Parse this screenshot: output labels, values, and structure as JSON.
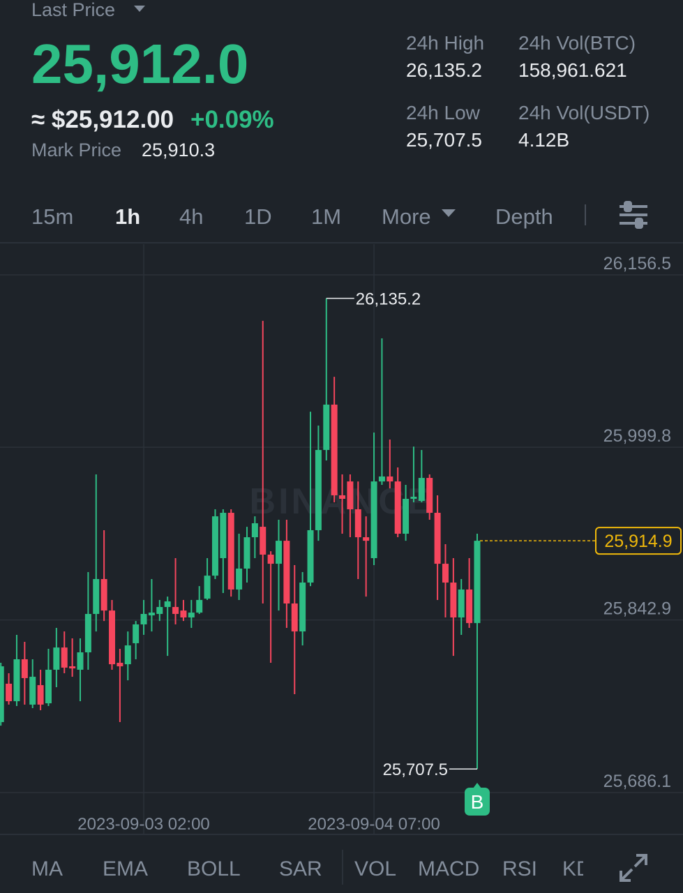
{
  "header": {
    "last_price_label": "Last Price",
    "last_price": "25,912.0",
    "approx_price": "≈ $25,912.00",
    "change": "+0.09%",
    "mark_price_label": "Mark Price",
    "mark_price": "25,910.3",
    "stats": [
      {
        "label": "24h High",
        "value": "26,135.2"
      },
      {
        "label": "24h Vol(BTC)",
        "value": "158,961.621"
      },
      {
        "label": "24h Low",
        "value": "25,707.5"
      },
      {
        "label": "24h Vol(USDT)",
        "value": "4.12B"
      }
    ]
  },
  "tabs": [
    "15m",
    "1h",
    "4h",
    "1D",
    "1M",
    "More",
    "Depth"
  ],
  "indicators": [
    "MA",
    "EMA",
    "BOLL",
    "SAR",
    "VOL",
    "MACD",
    "RSI",
    "KD"
  ],
  "chart_data": {
    "type": "candlestick",
    "watermark": "BINANCE",
    "up_color": "#2ebd85",
    "down_color": "#f6465d",
    "grid": true,
    "categories": [
      null,
      null,
      null,
      null,
      null,
      null,
      null,
      null,
      null,
      null,
      null,
      null,
      null,
      null,
      null,
      null,
      null,
      null,
      "2023-09-03 02:00",
      null,
      null,
      null,
      null,
      null,
      null,
      null,
      null,
      null,
      null,
      null,
      null,
      null,
      null,
      null,
      null,
      null,
      null,
      null,
      null,
      null,
      null,
      null,
      null,
      null,
      null,
      null,
      null,
      "2023-09-04 07:00",
      null,
      null,
      null,
      null,
      null,
      null,
      null,
      null,
      null,
      null,
      null,
      null,
      null
    ],
    "open": [
      25750.1,
      25785.0,
      25769.1,
      25807.2,
      25766.0,
      25783.7,
      25767.2,
      25797.7,
      25817.9,
      25800.8,
      25797.7,
      25813.5,
      25848.4,
      25880.1,
      25851.5,
      25804.0,
      25802.7,
      25821.8,
      25838.9,
      25847.1,
      25848.4,
      25854.7,
      25854.7,
      25851.5,
      25845.2,
      25849.6,
      25862.3,
      25883.2,
      25899.1,
      25940.3,
      25870.6,
      25889.6,
      25918.1,
      25927.6,
      25902.3,
      25894.0,
      25914.9,
      25857.9,
      25832.5,
      25876.9,
      25924.5,
      25997.4,
      26038.6,
      25956.2,
      25968.8,
      25943.5,
      25918.1,
      25899.1,
      25968.8,
      25973.3,
      25968.8,
      25921.3,
      25953.0,
      25951.1,
      25972.0,
      25940.3,
      25894.0,
      25876.9,
      25845.2,
      25870.6,
      25840.1
    ],
    "high": [
      25804.0,
      25794.5,
      25829.4,
      25823.0,
      25807.2,
      25797.7,
      25816.7,
      25835.7,
      25832.5,
      25826.2,
      25826.2,
      25886.4,
      25975.2,
      25924.5,
      25861.1,
      25816.7,
      25832.5,
      25842.0,
      25861.1,
      25880.1,
      25861.1,
      25864.2,
      25899.1,
      25861.1,
      25861.1,
      25873.7,
      25899.1,
      25943.5,
      25943.5,
      25943.5,
      25921.3,
      25927.6,
      25937.1,
      26114.7,
      25905.4,
      25934.0,
      25934.0,
      25892.8,
      25886.4,
      26032.2,
      26019.6,
      26135.2,
      26063.9,
      25975.2,
      25975.2,
      25968.8,
      25937.1,
      26013.2,
      26098.8,
      26006.9,
      25981.5,
      25965.7,
      26000.5,
      25997.4,
      25975.2,
      25956.2,
      25911.8,
      25899.1,
      25880.1,
      25899.1,
      25921.3
    ],
    "low": [
      25746.9,
      25766.0,
      25764.7,
      25766.0,
      25762.8,
      25760.9,
      25764.7,
      25781.8,
      25794.5,
      25791.3,
      25769.1,
      25797.7,
      25832.5,
      25842.0,
      25797.7,
      25750.1,
      25788.1,
      25807.2,
      25829.4,
      25832.5,
      25842.0,
      25810.3,
      25838.9,
      25842.0,
      25835.7,
      25848.4,
      25861.1,
      25880.1,
      25867.4,
      25864.2,
      25861.1,
      25876.9,
      25899.1,
      25857.9,
      25804.0,
      25851.5,
      25835.7,
      25775.5,
      25819.8,
      25873.7,
      25914.9,
      25987.9,
      25949.8,
      25921.3,
      25918.1,
      25880.1,
      25864.2,
      25892.8,
      25965.7,
      25962.5,
      25918.1,
      25914.9,
      25949.8,
      25949.8,
      25934.0,
      25861.1,
      25845.2,
      25810.3,
      25829.4,
      25835.7,
      25707.5
    ],
    "close": [
      25800.8,
      25769.1,
      25807.2,
      25790.1,
      25791.3,
      25766.0,
      25797.7,
      25817.9,
      25799.6,
      25798.9,
      25813.5,
      25848.4,
      25880.1,
      25851.5,
      25802.7,
      25800.8,
      25819.8,
      25838.9,
      25848.4,
      25849.6,
      25854.7,
      25859.8,
      25848.4,
      25845.2,
      25849.6,
      25861.1,
      25883.2,
      25937.1,
      25940.3,
      25870.6,
      25889.6,
      25918.1,
      25930.8,
      25902.3,
      25894.0,
      25914.9,
      25857.9,
      25832.5,
      25876.9,
      25924.5,
      25997.4,
      26038.6,
      25956.2,
      25953.0,
      25943.5,
      25918.1,
      25914.9,
      25968.8,
      25973.3,
      25968.8,
      25921.3,
      25953.0,
      25954.9,
      25972.0,
      25940.3,
      25894.0,
      25876.9,
      25845.2,
      25870.6,
      25840.1,
      25914.9
    ],
    "ylim": [
      25686.1,
      26156.5
    ],
    "yticks": [
      {
        "value": 26156.5,
        "label": "26,156.5"
      },
      {
        "value": 25999.8,
        "label": "25,999.8"
      },
      {
        "value": 25842.9,
        "label": "25,842.9"
      },
      {
        "value": 25686.1,
        "label": "25,686.1"
      }
    ],
    "high_annotation": {
      "value": 26135.2,
      "label": "26,135.2"
    },
    "low_annotation": {
      "value": 25707.5,
      "label": "25,707.5"
    },
    "last_price_line": {
      "value": 25914.9,
      "label": "25,914.9"
    },
    "buy_marker": "B"
  }
}
